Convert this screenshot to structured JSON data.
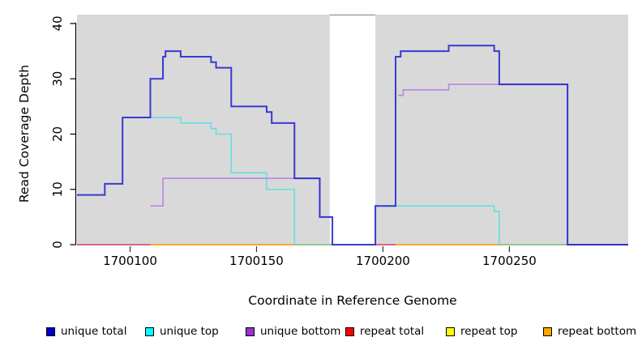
{
  "chart_data": {
    "type": "line",
    "step": true,
    "title": "",
    "xlabel": "Coordinate in Reference Genome",
    "ylabel": "Read Coverage Depth",
    "xlim": [
      1700079,
      1700297
    ],
    "ylim": [
      0,
      41.6
    ],
    "x_ticks": [
      1700100,
      1700150,
      1700200,
      1700250
    ],
    "y_ticks": [
      0,
      10,
      20,
      30,
      40
    ],
    "grid": false,
    "legend_position": "bottom",
    "plot_background": "#D9D9D9",
    "uncovered_band": {
      "x_start": 1700179,
      "x_end": 1700197,
      "fill": "#FFFFFF",
      "border": "#808080"
    },
    "draw_order": [
      "repeat total",
      "repeat top",
      "repeat bottom",
      "unique bottom",
      "unique top",
      "unique total"
    ],
    "series": [
      {
        "name": "unique total",
        "legend_label": "unique total",
        "legend_color": "#0000CD",
        "line_color": "#2828CF",
        "line_width": 2,
        "line_opacity": 0.9,
        "points": [
          [
            1700079,
            9
          ],
          [
            1700090,
            11
          ],
          [
            1700097,
            23
          ],
          [
            1700108,
            30
          ],
          [
            1700113,
            34
          ],
          [
            1700114,
            35
          ],
          [
            1700120,
            34
          ],
          [
            1700132,
            33
          ],
          [
            1700134,
            32
          ],
          [
            1700140,
            25
          ],
          [
            1700154,
            24
          ],
          [
            1700156,
            22
          ],
          [
            1700165,
            12
          ],
          [
            1700175,
            5
          ],
          [
            1700180,
            0
          ],
          [
            1700197,
            7
          ],
          [
            1700205,
            34
          ],
          [
            1700207,
            35
          ],
          [
            1700226,
            36
          ],
          [
            1700244,
            35
          ],
          [
            1700246,
            29
          ],
          [
            1700273,
            0
          ]
        ]
      },
      {
        "name": "unique top",
        "legend_label": "unique top",
        "legend_color": "#00FFFF",
        "line_color": "#35DFEA",
        "line_width": 1.6,
        "line_opacity": 0.7,
        "points": [
          [
            1700108,
            23
          ],
          [
            1700120,
            22
          ],
          [
            1700132,
            21
          ],
          [
            1700134,
            20
          ],
          [
            1700140,
            13
          ],
          [
            1700154,
            10
          ],
          [
            1700165,
            0
          ],
          [
            1700180,
            null
          ],
          [
            1700197,
            7
          ],
          [
            1700244,
            6
          ],
          [
            1700246,
            0
          ],
          [
            1700273,
            null
          ]
        ]
      },
      {
        "name": "unique bottom",
        "legend_label": "unique bottom",
        "legend_color": "#9932CC",
        "line_color": "#BB86DB",
        "line_width": 1.6,
        "line_opacity": 1,
        "points": [
          [
            1700108,
            7
          ],
          [
            1700113,
            12
          ],
          [
            1700175,
            5
          ],
          [
            1700180,
            null
          ],
          [
            1700206,
            27
          ],
          [
            1700208,
            28
          ],
          [
            1700226,
            29
          ],
          [
            1700273,
            0
          ]
        ]
      },
      {
        "name": "repeat total",
        "legend_label": "repeat total",
        "legend_color": "#FF0000",
        "line_color": "#D84070",
        "line_width": 1.6,
        "line_opacity": 1,
        "points": [
          [
            1700079,
            0
          ],
          [
            1700180,
            null
          ],
          [
            1700197,
            0
          ]
        ]
      },
      {
        "name": "repeat top",
        "legend_label": "repeat top",
        "legend_color": "#FFFF00",
        "line_color": "#FFFF00",
        "line_width": 1.6,
        "line_opacity": 1,
        "points": [
          [
            1700108,
            0
          ],
          [
            1700180,
            null
          ],
          [
            1700205,
            0
          ]
        ]
      },
      {
        "name": "repeat bottom",
        "legend_label": "repeat bottom",
        "legend_color": "#FFA500",
        "line_color": "#FF9E1A",
        "line_width": 1.6,
        "line_opacity": 1,
        "points": [
          [
            1700108,
            0
          ],
          [
            1700180,
            null
          ],
          [
            1700205,
            0
          ]
        ]
      }
    ]
  }
}
